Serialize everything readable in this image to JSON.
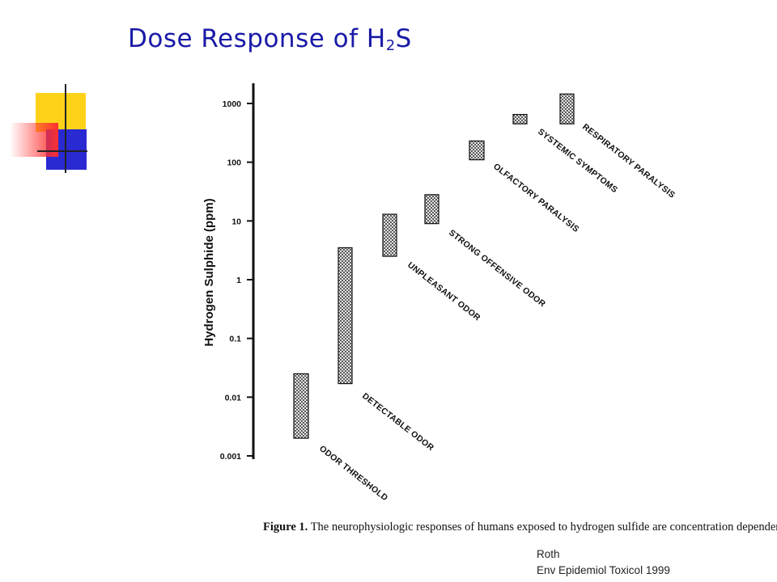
{
  "slide": {
    "title_main": "Dose Response of H",
    "title_sub": "2",
    "title_end": "S"
  },
  "caption": {
    "label": "Figure 1.",
    "text": "The neurophysiologic responses of humans exposed to hydrogen sulfide are concentration dependent."
  },
  "citation": {
    "author": "Roth",
    "source": "Env Epidemiol Toxicol 1999"
  },
  "colors": {
    "title": "#1a1aa8",
    "deco_yellow": "#ffd21a",
    "deco_blue": "#2a2ad2",
    "deco_red": "#ff3c3c",
    "bar_fill": "#b8b8b8",
    "ink": "#111111"
  },
  "chart_data": {
    "type": "bar",
    "scale": "log",
    "ylabel": "Hydrogen Sulphide (ppm)",
    "yticks": [
      "0.001",
      "0.01",
      "0.1",
      "1",
      "10",
      "100",
      "1000"
    ],
    "ylim": [
      0.001,
      1000
    ],
    "grid": false,
    "ranges": [
      {
        "label": "ODOR THRESHOLD",
        "low": 0.002,
        "high": 0.025
      },
      {
        "label": "DETECTABLE ODOR",
        "low": 0.017,
        "high": 3.5
      },
      {
        "label": "UNPLEASANT ODOR",
        "low": 2.5,
        "high": 13
      },
      {
        "label": "STRONG OFFENSIVE ODOR",
        "low": 9,
        "high": 28
      },
      {
        "label": "OLFACTORY PARALYSIS",
        "low": 110,
        "high": 230
      },
      {
        "label": "SYSTEMIC SYMPTOMS",
        "low": 450,
        "high": 650
      },
      {
        "label": "RESPIRATORY PARALYSIS",
        "low": 450,
        "high": 1450
      }
    ]
  }
}
